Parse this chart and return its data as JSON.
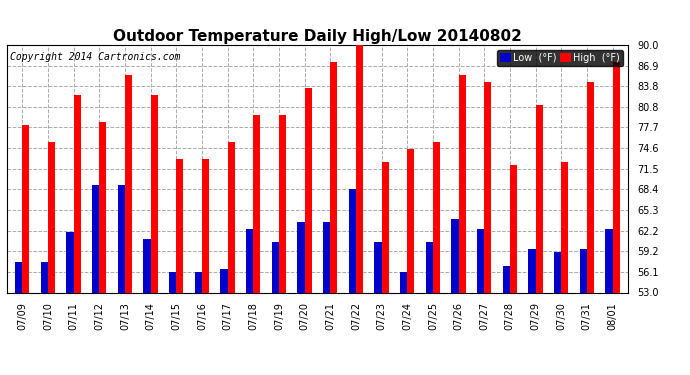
{
  "title": "Outdoor Temperature Daily High/Low 20140802",
  "copyright": "Copyright 2014 Cartronics.com",
  "legend_low": "Low  (°F)",
  "legend_high": "High  (°F)",
  "dates": [
    "07/09",
    "07/10",
    "07/11",
    "07/12",
    "07/13",
    "07/14",
    "07/15",
    "07/16",
    "07/17",
    "07/18",
    "07/19",
    "07/20",
    "07/21",
    "07/22",
    "07/23",
    "07/24",
    "07/25",
    "07/26",
    "07/27",
    "07/28",
    "07/29",
    "07/30",
    "07/31",
    "08/01"
  ],
  "highs": [
    78.0,
    75.5,
    82.5,
    78.5,
    85.5,
    82.5,
    73.0,
    73.0,
    75.5,
    79.5,
    79.5,
    83.5,
    87.5,
    91.0,
    72.5,
    74.5,
    75.5,
    85.5,
    84.5,
    72.0,
    81.0,
    72.5,
    84.5,
    87.5
  ],
  "lows": [
    57.5,
    57.5,
    62.0,
    69.0,
    69.0,
    61.0,
    56.0,
    56.0,
    56.5,
    62.5,
    60.5,
    63.5,
    63.5,
    68.5,
    60.5,
    56.0,
    60.5,
    64.0,
    62.5,
    57.0,
    59.5,
    59.0,
    59.5,
    62.5
  ],
  "ymin": 53.0,
  "ymax": 90.0,
  "yticks": [
    53.0,
    56.1,
    59.2,
    62.2,
    65.3,
    68.4,
    71.5,
    74.6,
    77.7,
    80.8,
    83.8,
    86.9,
    90.0
  ],
  "bar_width": 0.28,
  "high_color": "#ff0000",
  "low_color": "#0000cc",
  "bg_color": "#ffffff",
  "grid_color": "#aaaaaa",
  "title_fontsize": 11,
  "tick_fontsize": 7,
  "copyright_fontsize": 7
}
